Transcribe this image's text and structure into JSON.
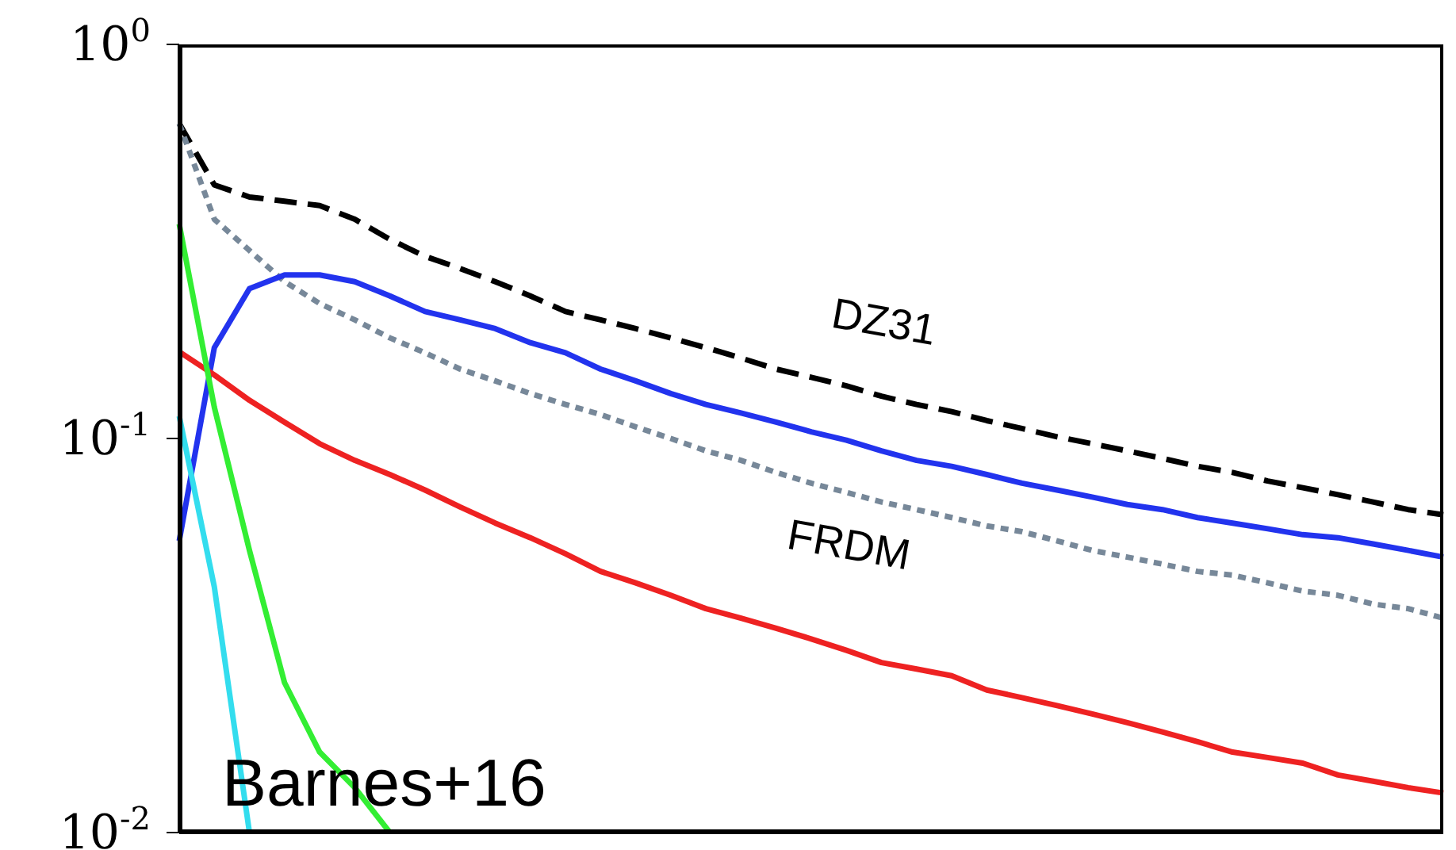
{
  "chart_data": {
    "type": "line",
    "log": "y",
    "ylim": [
      0.01,
      1
    ],
    "yticks": [
      {
        "value": 1,
        "label": "10$^{0}$"
      },
      {
        "value": 0.1,
        "label": "10$^{-1}$"
      },
      {
        "value": 0.01,
        "label": "10$^{-2}$"
      }
    ],
    "tick_labels": "y",
    "marker": "none",
    "categories": [
      null,
      null,
      null,
      null,
      null,
      null,
      null,
      null,
      null,
      null,
      null,
      null,
      null,
      null,
      null,
      null,
      null,
      null,
      null,
      null,
      null,
      null,
      null,
      null,
      null,
      null,
      null,
      null,
      null,
      null,
      null,
      null,
      null,
      null,
      null,
      null,
      null
    ],
    "annotations": [
      "Barnes+16"
    ],
    "series": [
      {
        "name": "DZ31",
        "color": "#000000",
        "line_style": "dashed",
        "values": [
          0.63,
          0.44,
          0.41,
          0.4,
          0.39,
          0.36,
          0.32,
          0.29,
          0.27,
          0.25,
          0.23,
          0.21,
          0.2,
          0.19,
          0.18,
          0.17,
          0.16,
          0.15,
          0.143,
          0.136,
          0.128,
          0.122,
          0.117,
          0.111,
          0.106,
          0.101,
          0.097,
          0.093,
          0.089,
          0.085,
          0.082,
          0.078,
          0.075,
          0.072,
          0.069,
          0.066,
          0.064
        ]
      },
      {
        "name": "FRDM",
        "color": "#778899",
        "line_style": "dotted",
        "values": [
          0.63,
          0.36,
          0.3,
          0.25,
          0.22,
          0.2,
          0.18,
          0.165,
          0.15,
          0.14,
          0.13,
          0.122,
          0.115,
          0.107,
          0.1,
          0.093,
          0.088,
          0.082,
          0.077,
          0.073,
          0.069,
          0.066,
          0.063,
          0.06,
          0.058,
          0.055,
          0.052,
          0.05,
          0.048,
          0.046,
          0.045,
          0.043,
          0.041,
          0.04,
          0.038,
          0.037,
          0.035
        ]
      },
      {
        "color": "#2233ee",
        "line_style": "solid",
        "values": [
          0.055,
          0.17,
          0.24,
          0.26,
          0.26,
          0.25,
          0.23,
          0.21,
          0.2,
          0.19,
          0.175,
          0.165,
          0.15,
          0.14,
          0.13,
          0.122,
          0.116,
          0.11,
          0.104,
          0.099,
          0.093,
          0.088,
          0.085,
          0.081,
          0.077,
          0.074,
          0.071,
          0.068,
          0.066,
          0.063,
          0.061,
          0.059,
          0.057,
          0.056,
          0.054,
          0.052,
          0.05
        ]
      },
      {
        "color": "#ee2222",
        "line_style": "solid",
        "values": [
          0.166,
          0.145,
          0.125,
          0.11,
          0.097,
          0.088,
          0.081,
          0.074,
          0.067,
          0.061,
          0.056,
          0.051,
          0.046,
          0.043,
          0.04,
          0.037,
          0.035,
          0.033,
          0.031,
          0.029,
          0.027,
          0.026,
          0.025,
          0.023,
          0.022,
          0.021,
          0.02,
          0.019,
          0.018,
          0.017,
          0.016,
          0.0155,
          0.015,
          0.014,
          0.0135,
          0.013,
          0.0126
        ]
      },
      {
        "color": "#33ee33",
        "line_style": "solid",
        "values": [
          0.35,
          0.12,
          0.052,
          0.024,
          0.016,
          0.013,
          0.01,
          null,
          null,
          null,
          null,
          null,
          null,
          null,
          null,
          null,
          null,
          null,
          null,
          null,
          null,
          null,
          null,
          null,
          null,
          null,
          null,
          null,
          null,
          null,
          null,
          null,
          null,
          null,
          null,
          null,
          null
        ]
      },
      {
        "color": "#33ddee",
        "line_style": "solid",
        "values": [
          0.114,
          0.042,
          0.01,
          null,
          null,
          null,
          null,
          null,
          null,
          null,
          null,
          null,
          null,
          null,
          null,
          null,
          null,
          null,
          null,
          null,
          null,
          null,
          null,
          null,
          null,
          null,
          null,
          null,
          null,
          null,
          null,
          null,
          null,
          null,
          null,
          null,
          null
        ]
      }
    ]
  }
}
